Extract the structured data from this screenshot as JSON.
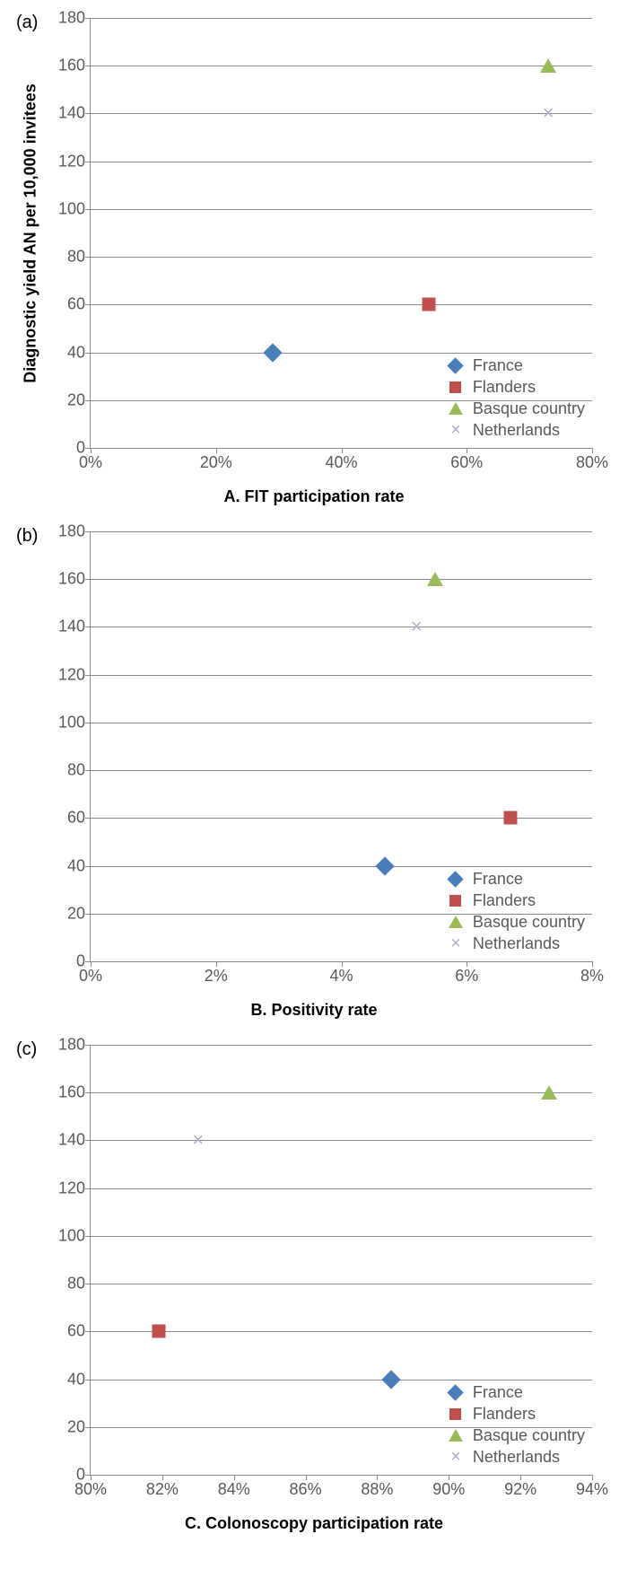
{
  "colors": {
    "france": "#4a7ebb",
    "flanders": "#c0504d",
    "basque": "#9bbb59",
    "netherlands": "#b9a9cb",
    "grid": "#888888",
    "tick_text": "#595959",
    "bg": "#ffffff"
  },
  "ylabel": "Diagnostic yield AN per 10,000 invitees",
  "ylim": [
    0,
    180
  ],
  "ytick_step": 20,
  "yticks": [
    0,
    20,
    40,
    60,
    80,
    100,
    120,
    140,
    160,
    180
  ],
  "legend": [
    {
      "label": "France",
      "marker": "diamond",
      "colorKey": "france"
    },
    {
      "label": "Flanders",
      "marker": "square",
      "colorKey": "flanders"
    },
    {
      "label": "Basque country",
      "marker": "triangle",
      "colorKey": "basque"
    },
    {
      "label": "Netherlands",
      "marker": "x",
      "colorKey": "netherlands"
    }
  ],
  "charts": [
    {
      "panel": "(a)",
      "xlabel": "A. FIT participation rate",
      "xlim": [
        0,
        80
      ],
      "xticks": [
        0,
        20,
        40,
        60,
        80
      ],
      "xtick_suffix": "%",
      "points": [
        {
          "series": "france",
          "x": 29,
          "y": 40
        },
        {
          "series": "flanders",
          "x": 54,
          "y": 60
        },
        {
          "series": "basque",
          "x": 73,
          "y": 160
        },
        {
          "series": "netherlands",
          "x": 73,
          "y": 140
        }
      ]
    },
    {
      "panel": "(b)",
      "xlabel": "B. Positivity rate",
      "xlim": [
        0,
        8
      ],
      "xticks": [
        0,
        2,
        4,
        6,
        8
      ],
      "xtick_suffix": "%",
      "points": [
        {
          "series": "france",
          "x": 4.7,
          "y": 40
        },
        {
          "series": "flanders",
          "x": 6.7,
          "y": 60
        },
        {
          "series": "basque",
          "x": 5.5,
          "y": 160
        },
        {
          "series": "netherlands",
          "x": 5.2,
          "y": 140
        }
      ]
    },
    {
      "panel": "(c)",
      "xlabel": "C. Colonoscopy participation rate",
      "xlim": [
        80,
        94
      ],
      "xticks": [
        80,
        82,
        84,
        86,
        88,
        90,
        92,
        94
      ],
      "xtick_suffix": "%",
      "points": [
        {
          "series": "france",
          "x": 88.4,
          "y": 40
        },
        {
          "series": "flanders",
          "x": 81.9,
          "y": 60
        },
        {
          "series": "basque",
          "x": 92.8,
          "y": 160
        },
        {
          "series": "netherlands",
          "x": 83.0,
          "y": 140
        }
      ]
    }
  ]
}
